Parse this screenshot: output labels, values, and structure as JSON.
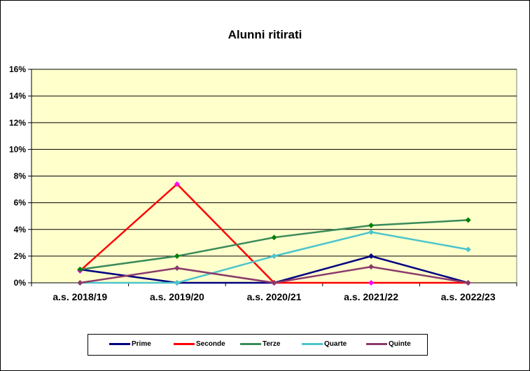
{
  "chart_data": {
    "type": "line",
    "title": "Alunni ritirati",
    "xlabel": "",
    "ylabel": "",
    "categories": [
      "a.s. 2018/19",
      "a.s. 2019/20",
      "a.s. 2020/21",
      "a.s. 2021/22",
      "a.s. 2022/23"
    ],
    "y_ticks": [
      "0%",
      "2%",
      "4%",
      "6%",
      "8%",
      "10%",
      "12%",
      "14%",
      "16%"
    ],
    "ylim": [
      0,
      16
    ],
    "grid": true,
    "legend_position": "bottom",
    "plot_background": "#FFFFCC",
    "series": [
      {
        "name": "Prime",
        "color": "#000080",
        "values": [
          1.0,
          0.0,
          0.0,
          2.0,
          0.0
        ]
      },
      {
        "name": "Seconde",
        "color": "#FF0000",
        "marker_color": "#FF00FF",
        "values": [
          0.9,
          7.4,
          0.0,
          0.0,
          0.0
        ]
      },
      {
        "name": "Terze",
        "color": "#3A8A5A",
        "marker_color": "#008000",
        "values": [
          1.0,
          2.0,
          3.4,
          4.3,
          4.7
        ]
      },
      {
        "name": "Quarte",
        "color": "#4CC4CC",
        "values": [
          0.0,
          0.0,
          2.0,
          3.8,
          2.5
        ]
      },
      {
        "name": "Quinte",
        "color": "#8B3A6B",
        "values": [
          0.0,
          1.1,
          0.0,
          1.2,
          0.0
        ]
      }
    ]
  }
}
